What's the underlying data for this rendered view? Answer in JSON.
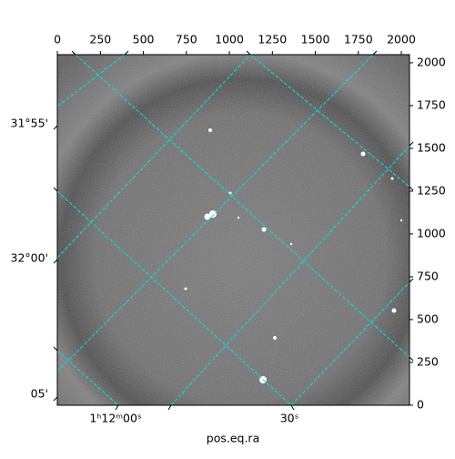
{
  "chart_data": {
    "type": "image",
    "xlabel": "pos.eq.ra",
    "xlim": [
      -0.5,
      2047.5
    ],
    "ylim": [
      -0.5,
      2047.5
    ],
    "xticks": [
      0,
      250,
      500,
      750,
      1000,
      1250,
      1500,
      1750,
      2000
    ],
    "yticks": [
      0,
      250,
      500,
      750,
      1000,
      1250,
      1500,
      1750,
      2000
    ],
    "ra_tick_labels": [
      "1ʰ12ᵐ00ˢ",
      "30ˢ"
    ],
    "dec_tick_labels": [
      "31°55'",
      "32°00'",
      "05'"
    ],
    "grid_color": "#00e5e5"
  }
}
